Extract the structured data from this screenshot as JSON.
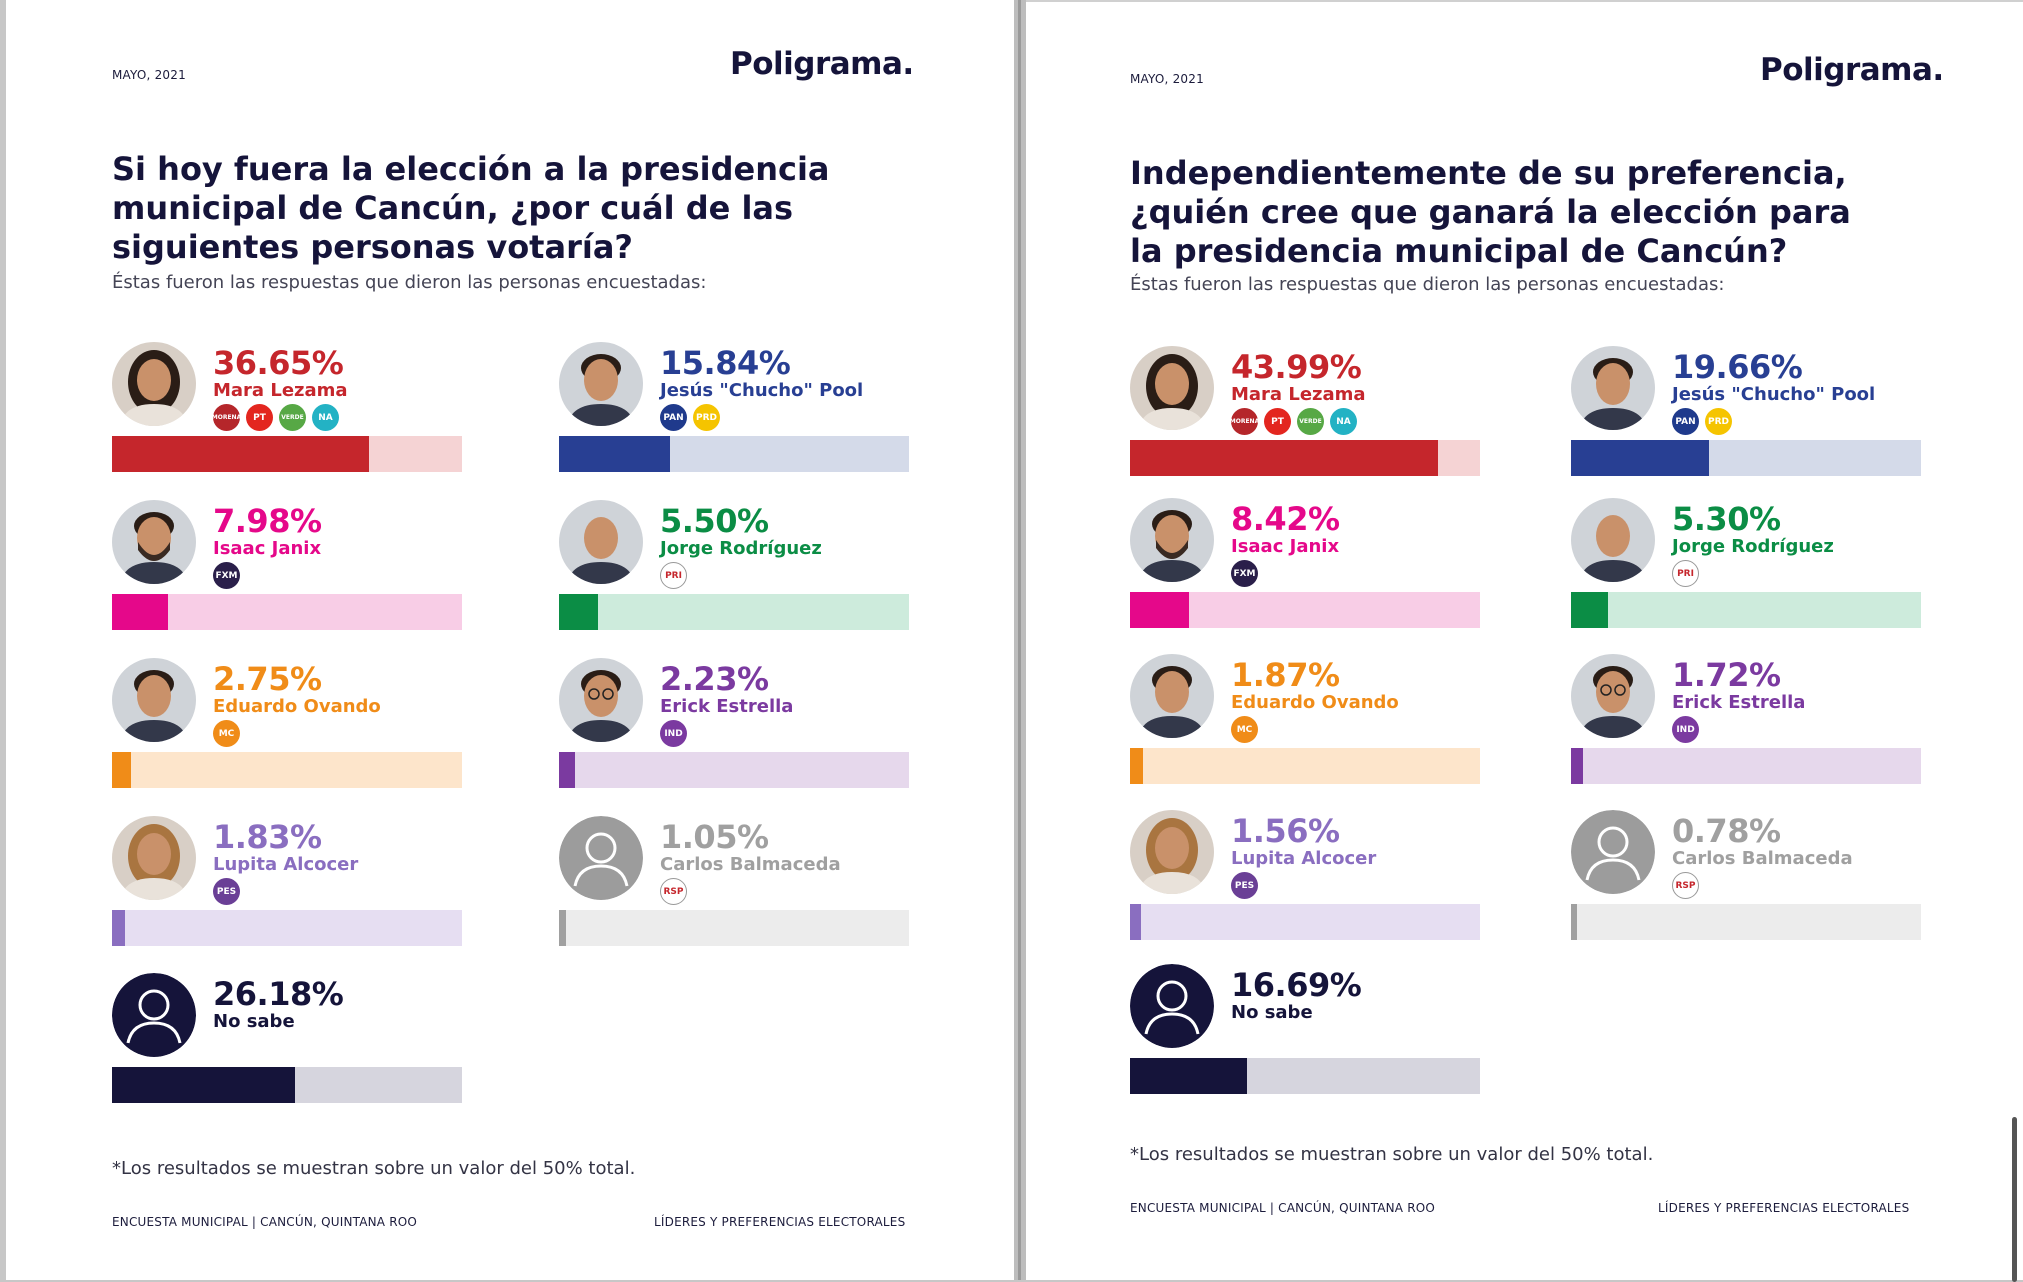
{
  "colors": {
    "navy": "#15143a",
    "red": "#c5262c",
    "blue": "#283f93",
    "magenta": "#e5088a",
    "green": "#0b8d45",
    "orange": "#f08c18",
    "purple": "#7b3aa0",
    "lavender": "#8a6ec0",
    "gray": "#a0a0a0"
  },
  "left": {
    "date": "MAYO, 2021",
    "logo": "Poligrama",
    "question": "Si hoy fuera la elección a la presidencia municipal de Cancún, ¿por cuál de las siguientes personas votaría?",
    "subtitle": "Éstas fueron las respuestas que dieron las personas encuestadas:",
    "note": "*Los resultados se muestran sobre un valor del 50% total.",
    "footer_left": "ENCUESTA MUNICIPAL | CANCÚN, QUINTANA ROO",
    "footer_right": "LÍDERES Y PREFERENCIAS ELECTORALES"
  },
  "right": {
    "date": "MAYO, 2021",
    "logo": "Poligrama",
    "question": "Independientemente de su preferencia, ¿quién cree que ganará la elección para la presidencia municipal de Cancún?",
    "subtitle": "Éstas fueron las respuestas que dieron las personas encuestadas:",
    "note": "*Los resultados se muestran sobre un valor del 50% total.",
    "footer_left": "ENCUESTA MUNICIPAL | CANCÚN, QUINTANA ROO",
    "footer_right": "LÍDERES Y PREFERENCIAS ELECTORALES"
  },
  "chart_data": [
    {
      "type": "bar",
      "title": "Si hoy fuera la elección a la presidencia municipal de Cancún, ¿por cuál de las siguientes personas votaría?",
      "ylim": [
        0,
        50
      ],
      "categories": [
        "Mara Lezama",
        "Jesús \"Chucho\" Pool",
        "Isaac Janix",
        "Jorge Rodríguez",
        "Eduardo Ovando",
        "Erick Estrella",
        "Lupita Alcocer",
        "Carlos Balmaceda",
        "No sabe"
      ],
      "values": [
        36.65,
        15.84,
        7.98,
        5.5,
        2.75,
        2.23,
        1.83,
        1.05,
        26.18
      ],
      "labels": [
        "36.65%",
        "15.84%",
        "7.98%",
        "5.50%",
        "2.75%",
        "2.23%",
        "1.83%",
        "1.05%",
        "26.18%"
      ]
    },
    {
      "type": "bar",
      "title": "Independientemente de su preferencia, ¿quién cree que ganará la elección para la presidencia municipal de Cancún?",
      "ylim": [
        0,
        50
      ],
      "categories": [
        "Mara Lezama",
        "Jesús \"Chucho\" Pool",
        "Isaac Janix",
        "Jorge Rodríguez",
        "Eduardo Ovando",
        "Erick Estrella",
        "Lupita Alcocer",
        "Carlos Balmaceda",
        "No sabe"
      ],
      "values": [
        43.99,
        19.66,
        8.42,
        5.3,
        1.87,
        1.72,
        1.56,
        0.78,
        16.69
      ],
      "labels": [
        "43.99%",
        "19.66%",
        "8.42%",
        "5.30%",
        "1.87%",
        "1.72%",
        "1.56%",
        "0.78%",
        "16.69%"
      ]
    }
  ],
  "candidates": [
    {
      "name": "Mara Lezama",
      "color": "#c5262c",
      "track": "#f5d3d4",
      "parties": [
        {
          "label": "MORENA",
          "color": "#b5262a"
        },
        {
          "label": "PT",
          "color": "#e3261f"
        },
        {
          "label": "VERDE",
          "color": "#57a845"
        },
        {
          "label": "NA",
          "color": "#23b2c4"
        }
      ],
      "avatar": "woman-dark-hair"
    },
    {
      "name": "Jesús \"Chucho\" Pool",
      "color": "#283f93",
      "track": "#d4dae9",
      "parties": [
        {
          "label": "PAN",
          "color": "#1f3a8c"
        },
        {
          "label": "PRD",
          "color": "#f5c400"
        }
      ],
      "avatar": "man-short-hair"
    },
    {
      "name": "Isaac Janix",
      "color": "#e5088a",
      "track": "#f8cde6",
      "parties": [
        {
          "label": "FXM",
          "color": "#2a1f4a"
        }
      ],
      "avatar": "man-beard"
    },
    {
      "name": "Jorge Rodríguez",
      "color": "#0b8d45",
      "track": "#cdebdc",
      "parties": [
        {
          "label": "PRI",
          "color": "#ffffff"
        }
      ],
      "avatar": "man-bald"
    },
    {
      "name": "Eduardo Ovando",
      "color": "#f08c18",
      "track": "#fde5cb",
      "parties": [
        {
          "label": "MC",
          "color": "#f08c18"
        }
      ],
      "avatar": "man-suit"
    },
    {
      "name": "Erick Estrella",
      "color": "#7b3aa0",
      "track": "#e6d8ec",
      "parties": [
        {
          "label": "IND",
          "color": "#7b3aa0"
        }
      ],
      "avatar": "man-glasses"
    },
    {
      "name": "Lupita Alcocer",
      "color": "#8a6ec0",
      "track": "#e6def2",
      "parties": [
        {
          "label": "PES",
          "color": "#6a3f96"
        }
      ],
      "avatar": "woman-blonde"
    },
    {
      "name": "Carlos Balmaceda",
      "color": "#a0a0a0",
      "track": "#ececec",
      "parties": [
        {
          "label": "RSP",
          "color": "#ffffff"
        }
      ],
      "avatar": "placeholder-person"
    },
    {
      "name": "No sabe",
      "color": "#15143a",
      "track": "#d6d5de",
      "parties": [],
      "avatar": "placeholder-navy"
    }
  ]
}
